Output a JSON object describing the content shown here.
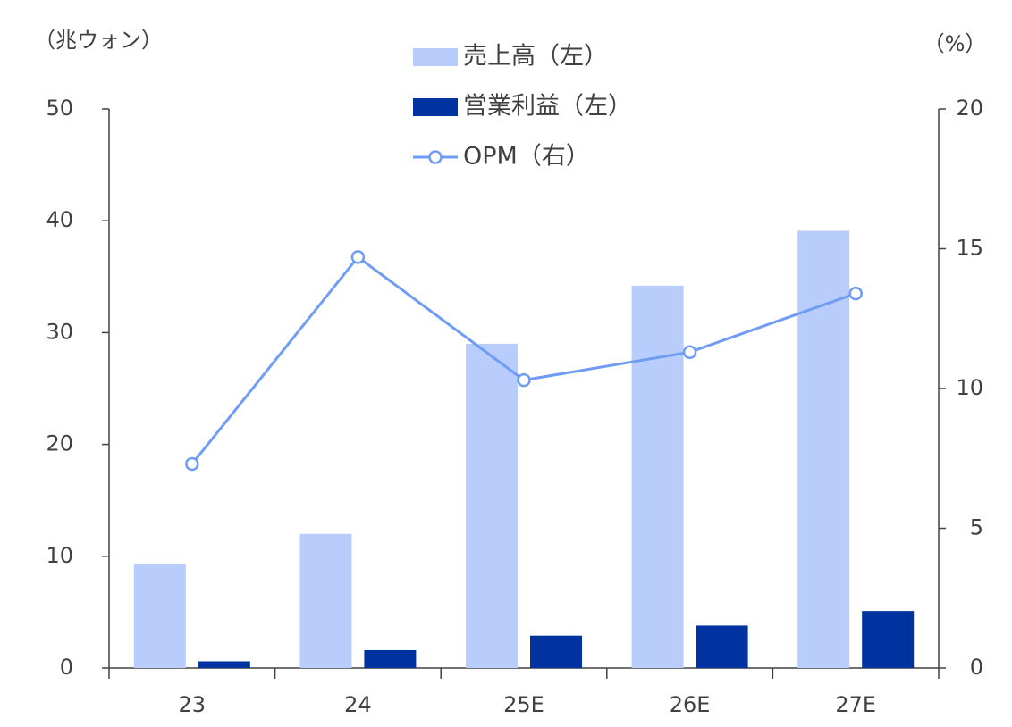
{
  "chart_data": {
    "type": "bar_line",
    "y_label": "（兆ウォン）",
    "y2_label": "（%）",
    "categories": [
      "23",
      "24",
      "25E",
      "26E",
      "27E"
    ],
    "series": [
      {
        "name": "売上高（左）",
        "type": "bar",
        "color": "#b8cdfb",
        "values": [
          9.3,
          12.0,
          29.0,
          34.2,
          39.1
        ]
      },
      {
        "name": "営業利益（左）",
        "type": "bar",
        "color": "#0033a0",
        "values": [
          0.6,
          1.6,
          2.9,
          3.8,
          5.1
        ]
      },
      {
        "name": "OPM（右）",
        "type": "line",
        "axis": "y2",
        "color": "#6f9cf5",
        "values": [
          7.3,
          14.7,
          10.3,
          11.3,
          13.4
        ]
      }
    ],
    "ylim": [
      0,
      50
    ],
    "yticks": [
      0,
      10,
      20,
      30,
      40,
      50
    ],
    "y2lim": [
      0,
      20
    ],
    "y2ticks": [
      0,
      5,
      10,
      15,
      20
    ],
    "grid": false,
    "legend": "top"
  }
}
